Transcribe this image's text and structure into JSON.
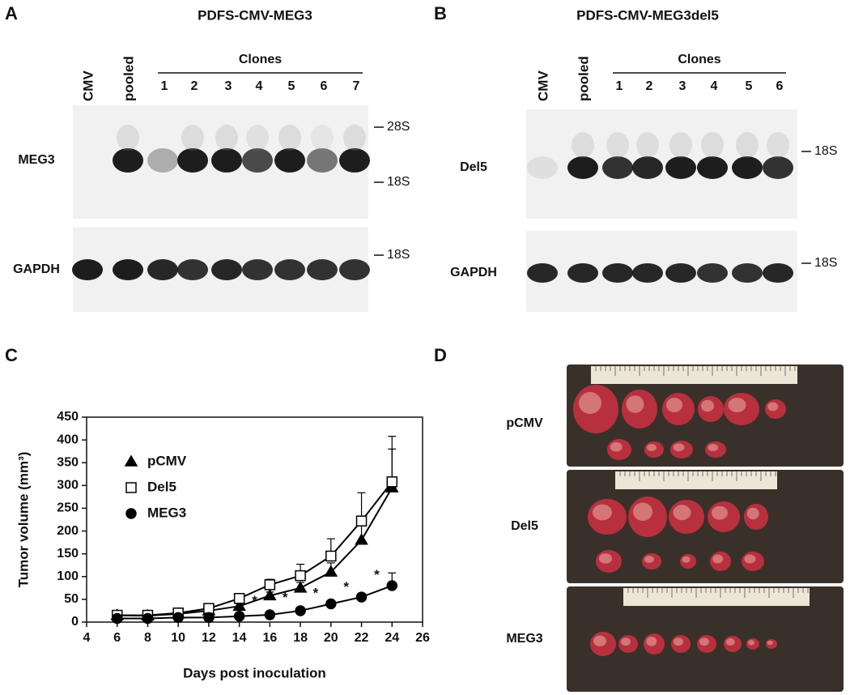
{
  "panel_a": {
    "letter": "A",
    "title": "PDFS-CMV-MEG3",
    "lanes": [
      "CMV",
      "pooled"
    ],
    "clones_label": "Clones",
    "clones": [
      "1",
      "2",
      "3",
      "4",
      "5",
      "6",
      "7"
    ],
    "rows": [
      "MEG3",
      "GAPDH"
    ],
    "markers": [
      "28S",
      "18S",
      "18S"
    ]
  },
  "panel_b": {
    "letter": "B",
    "title": "PDFS-CMV-MEG3del5",
    "lanes": [
      "CMV",
      "pooled"
    ],
    "clones_label": "Clones",
    "clones": [
      "1",
      "2",
      "3",
      "4",
      "5",
      "6"
    ],
    "rows": [
      "Del5",
      "GAPDH"
    ],
    "markers": [
      "18S",
      "18S"
    ]
  },
  "chart_data": {
    "type": "line",
    "letter": "C",
    "x_label": "Days post inoculation",
    "y_label": "Tumor volume (mm³)",
    "x": [
      6,
      8,
      10,
      12,
      14,
      16,
      18,
      20,
      22,
      24
    ],
    "series": [
      {
        "name": "pCMV",
        "color": "#000000",
        "marker": "triangle",
        "filled": true,
        "values": [
          15,
          14,
          18,
          25,
          35,
          58,
          75,
          110,
          180,
          295
        ],
        "errors": [
          3,
          3,
          4,
          5,
          6,
          8,
          12,
          20,
          40,
          85
        ]
      },
      {
        "name": "Del5",
        "color": "#000000",
        "marker": "square",
        "filled": false,
        "values": [
          15,
          15,
          20,
          30,
          52,
          82,
          102,
          145,
          222,
          308
        ],
        "errors": [
          3,
          3,
          4,
          5,
          6,
          12,
          25,
          38,
          62,
          100
        ]
      },
      {
        "name": "MEG3",
        "color": "#000000",
        "marker": "circle",
        "filled": true,
        "values": [
          8,
          8,
          10,
          10,
          13,
          16,
          25,
          40,
          55,
          80
        ],
        "errors": [
          2,
          2,
          2,
          3,
          3,
          3,
          4,
          6,
          8,
          28
        ]
      }
    ],
    "annotations": [
      "*",
      "*",
      "*",
      "*",
      "*"
    ],
    "xlim": [
      4,
      26
    ],
    "xticks": [
      4,
      6,
      8,
      10,
      12,
      14,
      16,
      18,
      20,
      22,
      24,
      26
    ],
    "ylim": [
      0,
      450
    ],
    "yticks": [
      0,
      50,
      100,
      150,
      200,
      250,
      300,
      350,
      400,
      450
    ],
    "legend": "upper left",
    "grid": false
  },
  "panel_d": {
    "letter": "D",
    "rows": [
      "pCMV",
      "Del5",
      "MEG3"
    ]
  }
}
